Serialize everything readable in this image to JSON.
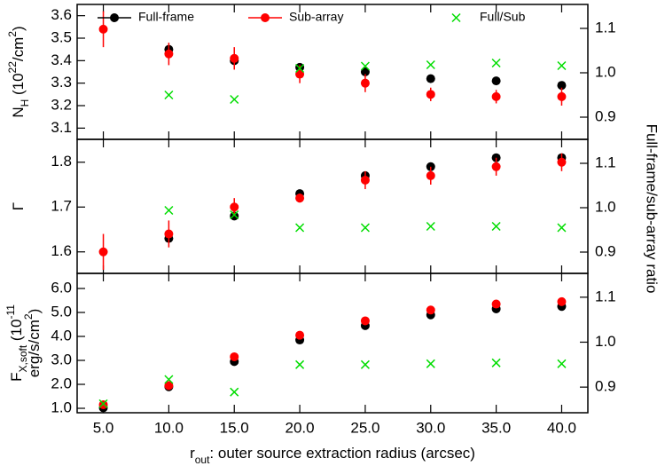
{
  "chart_data": [
    {
      "type": "scatter",
      "ylabel": [
        [
          {
            "text": "N"
          },
          {
            "text": "H",
            "shift": "sub"
          },
          {
            "text": " (10"
          },
          {
            "text": "22",
            "shift": "super"
          },
          {
            "text": "/cm"
          },
          {
            "text": "2",
            "shift": "super"
          },
          {
            "text": ")"
          }
        ]
      ],
      "x": [
        5,
        10,
        15,
        20,
        25,
        30,
        35,
        40
      ],
      "ylim": [
        3.05,
        3.65
      ],
      "yticks": [
        3.1,
        3.2,
        3.3,
        3.4,
        3.5,
        3.6
      ],
      "y2lim": [
        0.85,
        1.154
      ],
      "y2ticks": [
        0.9,
        {
          "value": 1.0,
          "label": "1.0"
        },
        1.1
      ],
      "legend": "top",
      "series": [
        {
          "name": "Full-frame",
          "color": "#000000",
          "marker": "circle",
          "values": [
            null,
            3.45,
            3.4,
            3.37,
            3.35,
            3.32,
            3.31,
            3.29
          ]
        },
        {
          "name": "Sub-array",
          "color": "#ff0000",
          "marker": "circle",
          "values": [
            3.54,
            3.43,
            3.41,
            3.34,
            3.3,
            3.25,
            3.24,
            3.24
          ],
          "errors": [
            0.08,
            0.05,
            0.05,
            0.04,
            0.04,
            0.03,
            0.03,
            0.04
          ]
        },
        {
          "name": "Full/Sub",
          "color": "#00dd00",
          "marker": "x",
          "axis": "y2",
          "values": [
            null,
            0.95,
            0.94,
            1.01,
            1.015,
            1.018,
            1.022,
            1.016
          ]
        }
      ]
    },
    {
      "type": "scatter",
      "ylabel": [
        [
          {
            "text": "Γ"
          }
        ]
      ],
      "y2label": "Full-frame/sub-array ratio",
      "x": [
        5,
        10,
        15,
        20,
        25,
        30,
        35,
        40
      ],
      "ylim": [
        1.552,
        1.851
      ],
      "yticks": [
        1.6,
        1.7,
        1.8
      ],
      "y2lim": [
        0.852,
        1.154
      ],
      "y2ticks": [
        0.9,
        {
          "value": 1.0,
          "label": "1.0"
        },
        1.1
      ],
      "series": [
        {
          "color": "#000000",
          "marker": "circle",
          "values": [
            null,
            1.63,
            1.68,
            1.73,
            1.77,
            1.79,
            1.81,
            1.81
          ]
        },
        {
          "color": "#ff0000",
          "marker": "circle",
          "values": [
            1.6,
            1.64,
            1.7,
            1.72,
            1.76,
            1.77,
            1.79,
            1.8
          ],
          "errors": [
            0.04,
            0.03,
            0.02,
            0.01,
            0.02,
            0.02,
            0.02,
            0.02
          ]
        },
        {
          "color": "#00dd00",
          "marker": "x",
          "axis": "y2",
          "values": [
            null,
            0.994,
            0.984,
            0.955,
            0.955,
            0.958,
            0.958,
            0.955
          ]
        }
      ]
    },
    {
      "type": "scatter",
      "ylabel": [
        [
          {
            "text": "F"
          },
          {
            "text": "X,soft",
            "shift": "sub"
          },
          {
            "text": " (10"
          },
          {
            "text": "-11",
            "shift": "super"
          }
        ],
        [
          {
            "text": "erg/s/cm"
          },
          {
            "text": "2",
            "shift": "super"
          },
          {
            "text": ")"
          }
        ]
      ],
      "xlabel": [
        {
          "text": "r"
        },
        {
          "text": "out",
          "shift": "sub"
        },
        {
          "text": ": outer source extraction radius (arcsec)"
        }
      ],
      "x": [
        5,
        10,
        15,
        20,
        25,
        30,
        35,
        40
      ],
      "xlim": [
        3,
        42
      ],
      "xticks": [
        {
          "value": 5,
          "label": "5.0"
        },
        {
          "value": 10,
          "label": "10.0"
        },
        {
          "value": 15,
          "label": "15.0"
        },
        {
          "value": 20,
          "label": "20.0"
        },
        {
          "value": 25,
          "label": "25.0"
        },
        {
          "value": 30,
          "label": "30.0"
        },
        {
          "value": 35,
          "label": "35.0"
        },
        {
          "value": 40,
          "label": "40.0"
        }
      ],
      "ylim": [
        0.815,
        6.63
      ],
      "yticks": [
        {
          "value": 1,
          "label": "1.0"
        },
        {
          "value": 2,
          "label": "2.0"
        },
        {
          "value": 3,
          "label": "3.0"
        },
        {
          "value": 4,
          "label": "4.0"
        },
        {
          "value": 5,
          "label": "5.0"
        },
        {
          "value": 6,
          "label": "6.0"
        }
      ],
      "y2lim": [
        0.843,
        1.153
      ],
      "y2ticks": [
        0.9,
        {
          "value": 1.0,
          "label": "1.0"
        },
        1.1
      ],
      "series": [
        {
          "color": "#000000",
          "marker": "circle",
          "values": [
            1.02,
            1.9,
            2.95,
            3.85,
            4.45,
            4.9,
            5.15,
            5.25
          ]
        },
        {
          "color": "#ff0000",
          "marker": "circle",
          "values": [
            1.15,
            1.95,
            3.15,
            4.05,
            4.65,
            5.1,
            5.35,
            5.45
          ]
        },
        {
          "color": "#00dd00",
          "marker": "x",
          "axis": "y2",
          "values": [
            0.863,
            0.917,
            0.889,
            0.95,
            0.95,
            0.952,
            0.954,
            0.952
          ]
        }
      ]
    }
  ]
}
